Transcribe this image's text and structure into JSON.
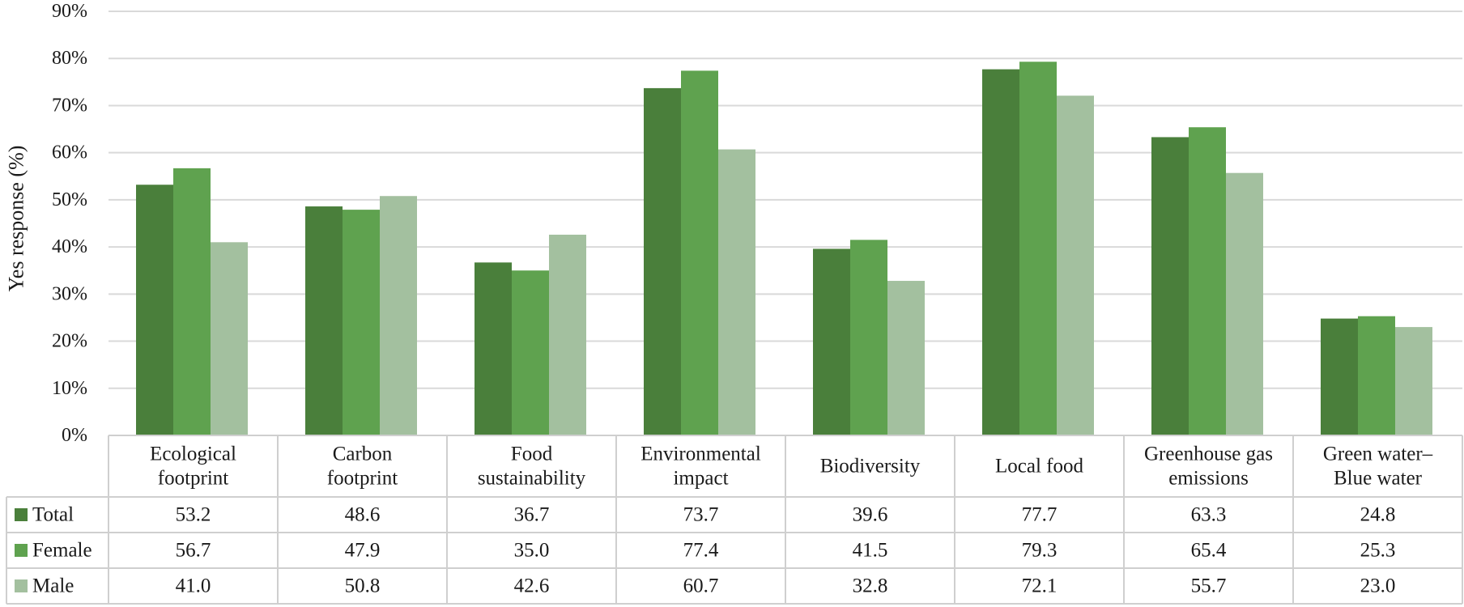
{
  "chart_data": {
    "type": "bar",
    "title": "",
    "xlabel": "",
    "ylabel": "Yes response (%)",
    "ylim": [
      0,
      90
    ],
    "y_ticks": [
      0,
      10,
      20,
      30,
      40,
      50,
      60,
      70,
      80,
      90
    ],
    "y_tick_labels": [
      "0%",
      "10%",
      "20%",
      "30%",
      "40%",
      "50%",
      "60%",
      "70%",
      "80%",
      "90%"
    ],
    "grid": true,
    "legend_placement": "data-table-left",
    "categories": [
      [
        "Ecological",
        "footprint"
      ],
      [
        "Carbon",
        "footprint"
      ],
      [
        "Food",
        "sustainability"
      ],
      [
        "Environmental",
        "impact"
      ],
      [
        "Biodiversity"
      ],
      [
        "Local food"
      ],
      [
        "Greenhouse gas",
        "emissions"
      ],
      [
        "Green water–",
        "Blue water"
      ]
    ],
    "series": [
      {
        "name": "Total",
        "color": "#4a7f3b",
        "values": [
          53.2,
          48.6,
          36.7,
          73.7,
          39.6,
          77.7,
          63.3,
          24.8
        ],
        "labels": [
          "53.2",
          "48.6",
          "36.7",
          "73.7",
          "39.6",
          "77.7",
          "63.3",
          "24.8"
        ]
      },
      {
        "name": "Female",
        "color": "#5fa24f",
        "values": [
          56.7,
          47.9,
          35.0,
          77.4,
          41.5,
          79.3,
          65.4,
          25.3
        ],
        "labels": [
          "56.7",
          "47.9",
          "35.0",
          "77.4",
          "41.5",
          "79.3",
          "65.4",
          "25.3"
        ]
      },
      {
        "name": "Male",
        "color": "#a3c09f",
        "values": [
          41.0,
          50.8,
          42.6,
          60.7,
          32.8,
          72.1,
          55.7,
          23.0
        ],
        "labels": [
          "41.0",
          "50.8",
          "42.6",
          "60.7",
          "32.8",
          "72.1",
          "55.7",
          "23.0"
        ]
      }
    ],
    "colors": {
      "grid": "#d9d9d9",
      "table_border": "#cfcfcf",
      "text": "#1a1a1a"
    }
  }
}
